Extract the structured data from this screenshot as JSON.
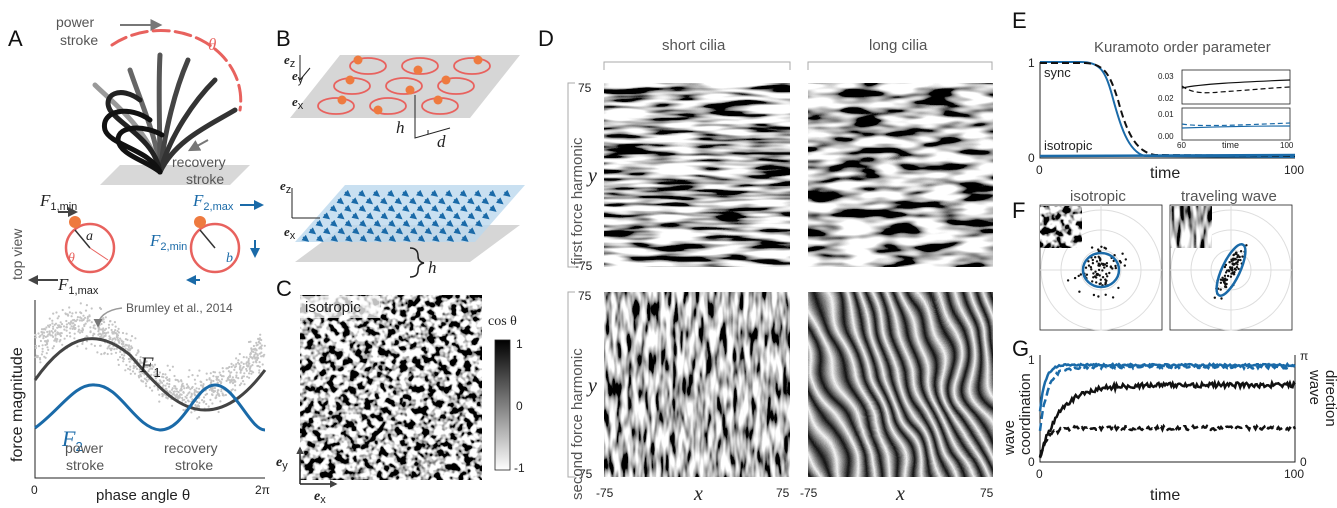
{
  "A": {
    "label": "A",
    "power_stroke": [
      "power",
      "stroke"
    ],
    "theta": "θ",
    "recovery_stroke": [
      "recovery",
      "stroke"
    ],
    "top_view": "top view",
    "f1min": {
      "base": "F",
      "sub": "1,min"
    },
    "a": "a",
    "theta_top": "θ",
    "f2max": {
      "base": "F",
      "sub": "2,max"
    },
    "f2min": {
      "base": "F",
      "sub": "2,min"
    },
    "b": "b",
    "f1max": {
      "base": "F",
      "sub": "1,max"
    },
    "plot": {
      "reference": "Brumley et al., 2014",
      "f1": {
        "base": "F",
        "sub": "1"
      },
      "f2": {
        "base": "F",
        "sub": "2"
      },
      "y_label": "force magnitude",
      "power_stroke": [
        "power",
        "stroke"
      ],
      "recovery_stroke": [
        "recovery",
        "stroke"
      ],
      "x_ticks": [
        "0",
        "2π"
      ],
      "x_label": "phase angle θ"
    }
  },
  "B": {
    "label": "B",
    "top_axes": [
      {
        "base": "e",
        "sub": "z"
      },
      {
        "base": "e",
        "sub": "y"
      },
      {
        "base": "e",
        "sub": "x"
      }
    ],
    "h": "h",
    "d": "d",
    "bottom_axes": [
      {
        "base": "e",
        "sub": "z"
      },
      {
        "base": "e",
        "sub": "x"
      }
    ],
    "h_bottom": "h"
  },
  "C": {
    "label": "C",
    "tag": "isotropic",
    "colorbar_label": "cos θ",
    "colorbar_ticks": [
      "1",
      "0",
      "-1"
    ],
    "axes": [
      {
        "base": "e",
        "sub": "y"
      },
      {
        "base": "e",
        "sub": "x"
      }
    ]
  },
  "D": {
    "label": "D",
    "columns": [
      "short cilia",
      "long cilia"
    ],
    "rows": [
      "first force harmonic",
      "second force harmonic"
    ],
    "y_label": "y",
    "y_ticks": [
      "75",
      "-75"
    ],
    "x_label": "x",
    "x_ticks": [
      "-75",
      "75"
    ]
  },
  "E": {
    "label": "E",
    "title": "Kuramoto order parameter",
    "y_ticks": [
      "1",
      "0"
    ],
    "x_ticks": [
      "0",
      "100"
    ],
    "x_label": "time",
    "sync": "sync",
    "isotropic": "isotropic",
    "inset": {
      "y_ticks": [
        "0.03",
        "0.02",
        "0.01",
        "0.00"
      ],
      "x_ticks": [
        "60",
        "100"
      ],
      "x_label": "time"
    }
  },
  "F": {
    "label": "F",
    "panels": [
      "isotropic",
      "traveling wave"
    ]
  },
  "G": {
    "label": "G",
    "y_label": [
      "wave",
      "coordination"
    ],
    "y2_label": [
      "wave",
      "direction"
    ],
    "y_ticks": [
      "1",
      "0"
    ],
    "y2_ticks": [
      "π",
      "0"
    ],
    "x_ticks": [
      "0",
      "100"
    ],
    "x_label": "time"
  }
}
